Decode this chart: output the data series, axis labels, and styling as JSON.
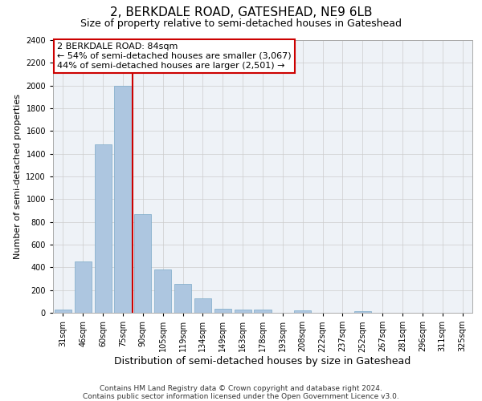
{
  "title": "2, BERKDALE ROAD, GATESHEAD, NE9 6LB",
  "subtitle": "Size of property relative to semi-detached houses in Gateshead",
  "xlabel": "Distribution of semi-detached houses by size in Gateshead",
  "ylabel": "Number of semi-detached properties",
  "categories": [
    "31sqm",
    "46sqm",
    "60sqm",
    "75sqm",
    "90sqm",
    "105sqm",
    "119sqm",
    "134sqm",
    "149sqm",
    "163sqm",
    "178sqm",
    "193sqm",
    "208sqm",
    "222sqm",
    "237sqm",
    "252sqm",
    "267sqm",
    "281sqm",
    "296sqm",
    "311sqm",
    "325sqm"
  ],
  "values": [
    30,
    450,
    1480,
    2000,
    870,
    380,
    255,
    130,
    35,
    30,
    25,
    0,
    20,
    0,
    0,
    15,
    0,
    0,
    0,
    0,
    0
  ],
  "bar_color": "#adc6e0",
  "bar_edge_color": "#7aaac8",
  "annotation_title": "2 BERKDALE ROAD: 84sqm",
  "annotation_line1": "← 54% of semi-detached houses are smaller (3,067)",
  "annotation_line2": "44% of semi-detached houses are larger (2,501) →",
  "annotation_box_color": "#cc0000",
  "ylim": [
    0,
    2400
  ],
  "yticks": [
    0,
    200,
    400,
    600,
    800,
    1000,
    1200,
    1400,
    1600,
    1800,
    2000,
    2200,
    2400
  ],
  "footer_line1": "Contains HM Land Registry data © Crown copyright and database right 2024.",
  "footer_line2": "Contains public sector information licensed under the Open Government Licence v3.0.",
  "title_fontsize": 11,
  "subtitle_fontsize": 9,
  "xlabel_fontsize": 9,
  "ylabel_fontsize": 8,
  "tick_fontsize": 7,
  "annotation_fontsize": 8,
  "footer_fontsize": 6.5,
  "grid_color": "#cccccc",
  "bg_color": "#eef2f7",
  "highlight_line_color": "#cc0000"
}
